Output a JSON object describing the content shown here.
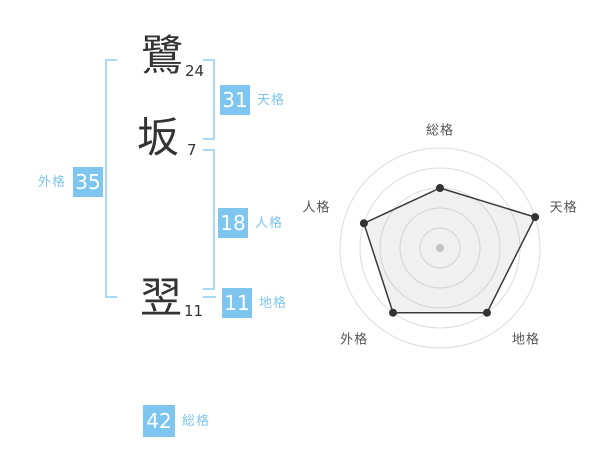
{
  "name": {
    "chars": [
      {
        "char": "鷺",
        "strokes": "24"
      },
      {
        "char": "坂",
        "strokes": "7"
      },
      {
        "char": "翌",
        "strokes": "11"
      }
    ]
  },
  "scores": {
    "tenkaku": {
      "label": "天格",
      "value": "31"
    },
    "jinkaku": {
      "label": "人格",
      "value": "18"
    },
    "chikaku": {
      "label": "地格",
      "value": "11"
    },
    "gaikaku": {
      "label": "外格",
      "value": "35"
    },
    "soukaku": {
      "label": "総格",
      "value": "42"
    }
  },
  "chart_data": {
    "type": "radar",
    "categories": [
      "総格",
      "天格",
      "地格",
      "外格",
      "人格"
    ],
    "values": [
      60,
      100,
      80,
      80,
      80
    ],
    "max": 100,
    "rings": 5,
    "grid": "concentric-circles",
    "spokes": false,
    "legend": false,
    "colors": {
      "grid": "#dcdcdc",
      "polygon_stroke": "#3a3a3a",
      "polygon_fill": "rgba(160,160,160,0.16)",
      "point": "#333333",
      "center_dot": "#c9c9c9",
      "label": "#555555"
    }
  },
  "colors": {
    "background": "#ffffff",
    "accent_blue": "#7EC6EF",
    "bracket_blue": "#A8DAF5",
    "text_dark": "#333333"
  }
}
